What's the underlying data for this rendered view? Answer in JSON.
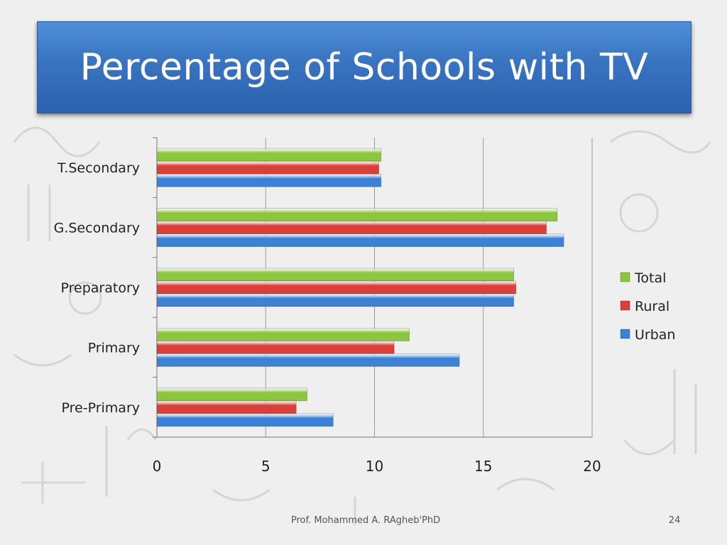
{
  "slide": {
    "title": "Percentage of Schools with TV",
    "footer": "Prof. Mohammed A. RAgheb'PhD",
    "page_number": "24"
  },
  "colors": {
    "total": "#8cc63f",
    "rural": "#d9403a",
    "urban": "#3b82d6",
    "title_bar": "#3873c1"
  },
  "chart_data": {
    "type": "bar",
    "orientation": "horizontal",
    "categories": [
      "T.Secondary",
      "G.Secondary",
      "Preparatory",
      "Primary",
      "Pre-Primary"
    ],
    "series": [
      {
        "name": "Total",
        "values": [
          10.3,
          18.4,
          16.4,
          11.6,
          6.9
        ]
      },
      {
        "name": "Rural",
        "values": [
          10.2,
          17.9,
          16.5,
          10.9,
          6.4
        ]
      },
      {
        "name": "Urban",
        "values": [
          10.3,
          18.7,
          16.4,
          13.9,
          8.1
        ]
      }
    ],
    "xlim": [
      0,
      20
    ],
    "xticks": [
      "0",
      "5",
      "10",
      "15",
      "20"
    ],
    "grid": true,
    "legend_position": "right"
  }
}
